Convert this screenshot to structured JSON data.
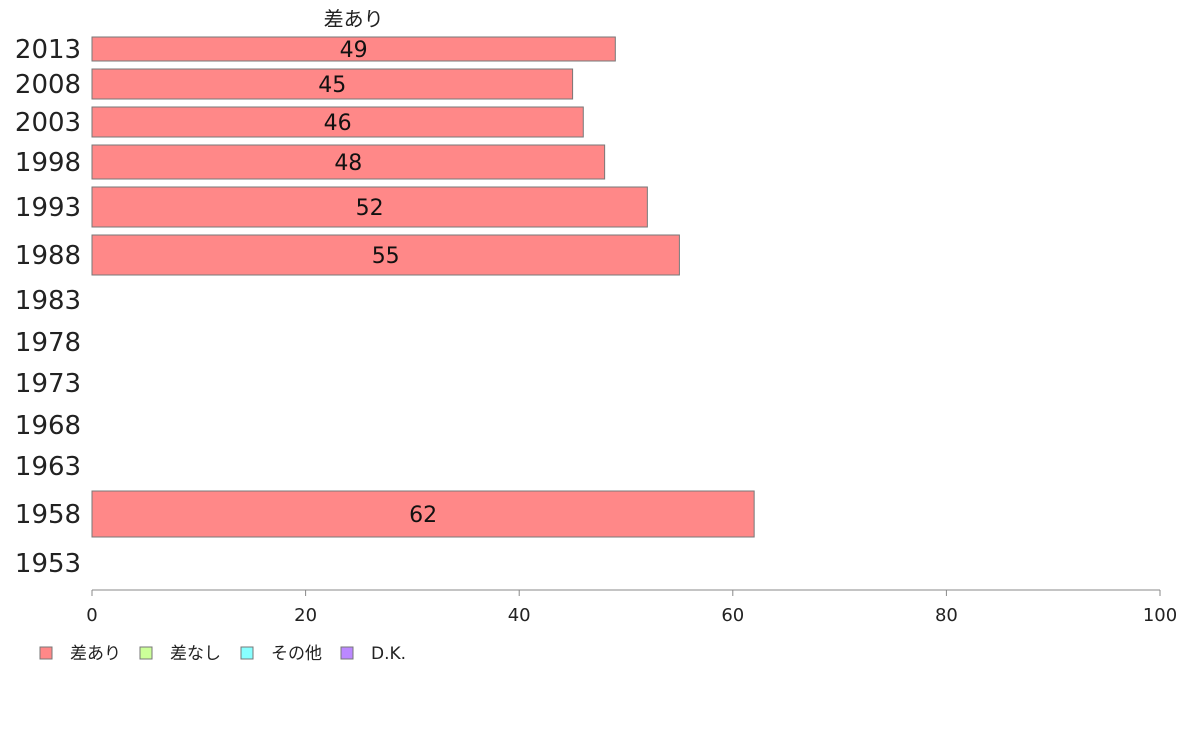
{
  "chart_data": {
    "type": "bar",
    "orientation": "horizontal",
    "series_label": "差あり",
    "categories": [
      "2013",
      "2008",
      "2003",
      "1998",
      "1993",
      "1988",
      "1983",
      "1978",
      "1973",
      "1968",
      "1963",
      "1958",
      "1953"
    ],
    "series": [
      {
        "name": "差あり",
        "color": "#ff8888",
        "values": [
          49,
          45,
          46,
          48,
          52,
          55,
          null,
          null,
          null,
          null,
          null,
          62,
          null
        ]
      }
    ],
    "xlim": [
      0,
      100
    ],
    "xticks": [
      "0",
      "20",
      "40",
      "60",
      "80",
      "100"
    ],
    "legend": [
      {
        "label": "差あり",
        "color": "#ff8888"
      },
      {
        "label": "差なし",
        "color": "#ccff99"
      },
      {
        "label": "その他",
        "color": "#88ffff"
      },
      {
        "label": "D.K.",
        "color": "#bb88ff"
      }
    ],
    "legend_position": "bottom-left",
    "grid": false
  }
}
